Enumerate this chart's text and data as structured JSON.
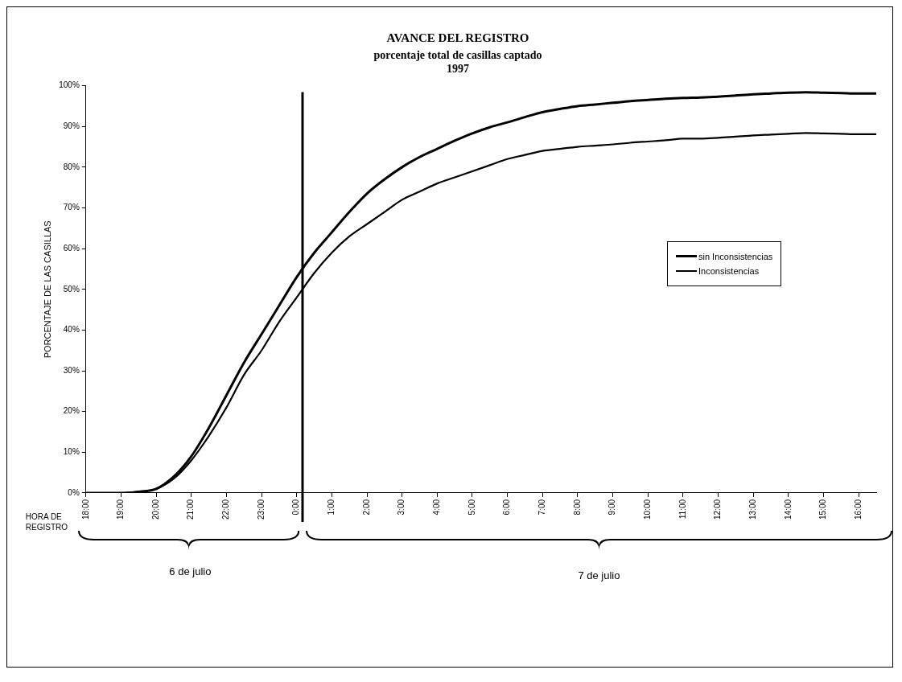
{
  "chart_data": {
    "type": "line",
    "title": "AVANCE DEL REGISTRO",
    "subtitle": "porcentaje total de casillas captado",
    "ylabel": "PORCENTAJE DE LAS CASILLAS",
    "annotations": [
      "1997",
      "HORA DE REGISTRO",
      "6 de julio",
      "7 de julio"
    ],
    "x": [
      "1997-07-06T18:00",
      "1997-07-06T18:30",
      "1997-07-06T19:00",
      "1997-07-06T19:30",
      "1997-07-06T20:00",
      "1997-07-06T20:30",
      "1997-07-06T21:00",
      "1997-07-06T21:30",
      "1997-07-06T22:00",
      "1997-07-06T22:30",
      "1997-07-06T23:00",
      "1997-07-06T23:30",
      "1997-07-07T00:00",
      "1997-07-07T00:30",
      "1997-07-07T01:00",
      "1997-07-07T01:30",
      "1997-07-07T02:00",
      "1997-07-07T02:30",
      "1997-07-07T03:00",
      "1997-07-07T03:30",
      "1997-07-07T04:00",
      "1997-07-07T04:30",
      "1997-07-07T05:00",
      "1997-07-07T05:30",
      "1997-07-07T06:00",
      "1997-07-07T06:30",
      "1997-07-07T07:00",
      "1997-07-07T07:30",
      "1997-07-07T08:00",
      "1997-07-07T08:30",
      "1997-07-07T09:00",
      "1997-07-07T09:30",
      "1997-07-07T10:00",
      "1997-07-07T10:30",
      "1997-07-07T11:00",
      "1997-07-07T11:30",
      "1997-07-07T12:00",
      "1997-07-07T12:30",
      "1997-07-07T13:00",
      "1997-07-07T13:30",
      "1997-07-07T14:00",
      "1997-07-07T14:30",
      "1997-07-07T15:00",
      "1997-07-07T15:30",
      "1997-07-07T16:00",
      "1997-07-07T16:30"
    ],
    "series": [
      {
        "name": "sin Inconsistencias",
        "color": "#000000",
        "values": [
          0,
          0,
          0,
          0.3,
          1,
          4,
          9,
          16,
          24,
          32,
          39,
          46,
          53,
          59,
          64,
          69,
          73.5,
          77,
          80,
          82.5,
          84.5,
          86.5,
          88.3,
          89.8,
          91,
          92.3,
          93.5,
          94.3,
          95,
          95.4,
          95.8,
          96.2,
          96.5,
          96.8,
          97,
          97.1,
          97.3,
          97.6,
          97.9,
          98.1,
          98.3,
          98.4,
          98.3,
          98.2,
          98.1,
          98.1
        ]
      },
      {
        "name": "Inconsistencias",
        "color": "#000000",
        "values": [
          0,
          0,
          0,
          0.3,
          1,
          3.5,
          8,
          14,
          21,
          29,
          35,
          42,
          48,
          54,
          59,
          63,
          66,
          69,
          72,
          74,
          76,
          77.5,
          79,
          80.5,
          82,
          83,
          84,
          84.5,
          85,
          85.3,
          85.6,
          86,
          86.3,
          86.6,
          87,
          87,
          87.2,
          87.5,
          87.8,
          88,
          88.2,
          88.4,
          88.3,
          88.2,
          88.1,
          88.1
        ]
      }
    ],
    "xlim": [
      "1997-07-06T18:00",
      "1997-07-07T16:30"
    ],
    "xticks": [
      {
        "value": "1997-07-06T18:00",
        "label": "18:00"
      },
      {
        "value": "1997-07-06T19:00",
        "label": "19:00"
      },
      {
        "value": "1997-07-06T20:00",
        "label": "20:00"
      },
      {
        "value": "1997-07-06T21:00",
        "label": "21:00"
      },
      {
        "value": "1997-07-06T22:00",
        "label": "22:00"
      },
      {
        "value": "1997-07-06T23:00",
        "label": "23:00"
      },
      {
        "value": "1997-07-07T00:00",
        "label": "0:00"
      },
      {
        "value": "1997-07-07T01:00",
        "label": "1:00"
      },
      {
        "value": "1997-07-07T02:00",
        "label": "2:00"
      },
      {
        "value": "1997-07-07T03:00",
        "label": "3:00"
      },
      {
        "value": "1997-07-07T04:00",
        "label": "4:00"
      },
      {
        "value": "1997-07-07T05:00",
        "label": "5:00"
      },
      {
        "value": "1997-07-07T06:00",
        "label": "6:00"
      },
      {
        "value": "1997-07-07T07:00",
        "label": "7:00"
      },
      {
        "value": "1997-07-07T08:00",
        "label": "8:00"
      },
      {
        "value": "1997-07-07T09:00",
        "label": "9:00"
      },
      {
        "value": "1997-07-07T10:00",
        "label": "10:00"
      },
      {
        "value": "1997-07-07T11:00",
        "label": "11:00"
      },
      {
        "value": "1997-07-07T12:00",
        "label": "12:00"
      },
      {
        "value": "1997-07-07T13:00",
        "label": "13:00"
      },
      {
        "value": "1997-07-07T14:00",
        "label": "14:00"
      },
      {
        "value": "1997-07-07T15:00",
        "label": "15:00"
      },
      {
        "value": "1997-07-07T16:00",
        "label": "16:00"
      }
    ],
    "ylim": [
      0,
      100
    ],
    "yticks": [
      {
        "value": 0,
        "label": "0%"
      },
      {
        "value": 10,
        "label": "10%"
      },
      {
        "value": 20,
        "label": "20%"
      },
      {
        "value": 30,
        "label": "30%"
      },
      {
        "value": 40,
        "label": "40%"
      },
      {
        "value": 50,
        "label": "50%"
      },
      {
        "value": 60,
        "label": "60%"
      },
      {
        "value": 70,
        "label": "70%"
      },
      {
        "value": 80,
        "label": "80%"
      },
      {
        "value": 90,
        "label": "90%"
      },
      {
        "value": 100,
        "label": "100%"
      }
    ],
    "ref_lines": [
      {
        "axis": "x",
        "value": "1997-07-07T00:10",
        "color": "#000000"
      }
    ],
    "grid": false,
    "legend": "right",
    "marker": "none",
    "line_style": "solid"
  }
}
